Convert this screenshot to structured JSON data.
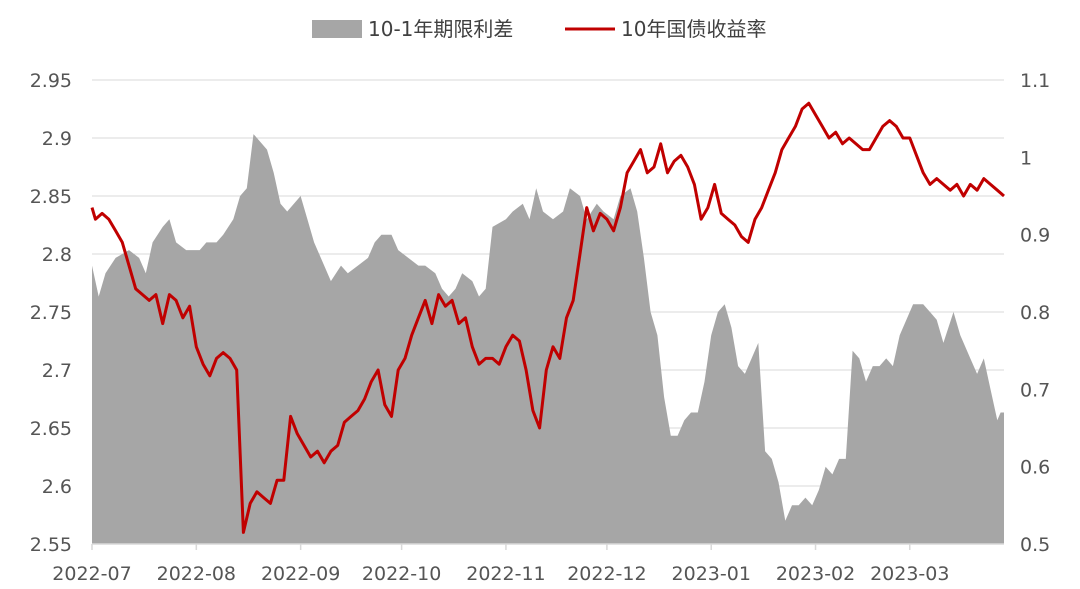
{
  "colors": {
    "spread": "#a6a6a6",
    "yield": "#c00000",
    "axis": "#d9d9d9",
    "text": "#555555"
  },
  "legend": {
    "placement": "top"
  },
  "chart_data": {
    "type": "area+line",
    "xlim": [
      "2022-07-01",
      "2023-03-29"
    ],
    "x_ticks": [
      "2022-07",
      "2022-08",
      "2022-09",
      "2022-10",
      "2022-11",
      "2022-12",
      "2023-01",
      "2023-02",
      "2023-03"
    ],
    "y_left": {
      "lim": [
        2.55,
        2.95
      ],
      "ticks": [
        "2.55",
        "2.6",
        "2.65",
        "2.7",
        "2.75",
        "2.8",
        "2.85",
        "2.9",
        "2.95"
      ]
    },
    "y_right": {
      "lim": [
        0.5,
        1.1
      ],
      "ticks": [
        "0.5",
        "0.6",
        "0.7",
        "0.8",
        "0.9",
        "1",
        "1.1"
      ]
    },
    "series": [
      {
        "name": "10-1年期限利差",
        "kind": "area",
        "axis": "right",
        "points": [
          [
            "2022-07-01",
            0.86
          ],
          [
            "2022-07-03",
            0.82
          ],
          [
            "2022-07-05",
            0.85
          ],
          [
            "2022-07-08",
            0.87
          ],
          [
            "2022-07-12",
            0.88
          ],
          [
            "2022-07-15",
            0.87
          ],
          [
            "2022-07-17",
            0.85
          ],
          [
            "2022-07-19",
            0.89
          ],
          [
            "2022-07-22",
            0.91
          ],
          [
            "2022-07-24",
            0.92
          ],
          [
            "2022-07-26",
            0.89
          ],
          [
            "2022-07-29",
            0.88
          ],
          [
            "2022-08-02",
            0.88
          ],
          [
            "2022-08-04",
            0.89
          ],
          [
            "2022-08-07",
            0.89
          ],
          [
            "2022-08-09",
            0.9
          ],
          [
            "2022-08-12",
            0.92
          ],
          [
            "2022-08-14",
            0.95
          ],
          [
            "2022-08-16",
            0.96
          ],
          [
            "2022-08-18",
            1.03
          ],
          [
            "2022-08-20",
            1.02
          ],
          [
            "2022-08-22",
            1.01
          ],
          [
            "2022-08-24",
            0.98
          ],
          [
            "2022-08-26",
            0.94
          ],
          [
            "2022-08-28",
            0.93
          ],
          [
            "2022-08-30",
            0.94
          ],
          [
            "2022-09-01",
            0.95
          ],
          [
            "2022-09-03",
            0.92
          ],
          [
            "2022-09-05",
            0.89
          ],
          [
            "2022-09-08",
            0.86
          ],
          [
            "2022-09-10",
            0.84
          ],
          [
            "2022-09-13",
            0.86
          ],
          [
            "2022-09-15",
            0.85
          ],
          [
            "2022-09-18",
            0.86
          ],
          [
            "2022-09-21",
            0.87
          ],
          [
            "2022-09-23",
            0.89
          ],
          [
            "2022-09-25",
            0.9
          ],
          [
            "2022-09-28",
            0.9
          ],
          [
            "2022-09-30",
            0.88
          ],
          [
            "2022-10-03",
            0.87
          ],
          [
            "2022-10-06",
            0.86
          ],
          [
            "2022-10-08",
            0.86
          ],
          [
            "2022-10-11",
            0.85
          ],
          [
            "2022-10-13",
            0.83
          ],
          [
            "2022-10-15",
            0.82
          ],
          [
            "2022-10-17",
            0.83
          ],
          [
            "2022-10-19",
            0.85
          ],
          [
            "2022-10-22",
            0.84
          ],
          [
            "2022-10-24",
            0.82
          ],
          [
            "2022-10-26",
            0.83
          ],
          [
            "2022-10-28",
            0.91
          ],
          [
            "2022-11-01",
            0.92
          ],
          [
            "2022-11-03",
            0.93
          ],
          [
            "2022-11-06",
            0.94
          ],
          [
            "2022-11-08",
            0.92
          ],
          [
            "2022-11-10",
            0.96
          ],
          [
            "2022-11-12",
            0.93
          ],
          [
            "2022-11-15",
            0.92
          ],
          [
            "2022-11-18",
            0.93
          ],
          [
            "2022-11-20",
            0.96
          ],
          [
            "2022-11-23",
            0.95
          ],
          [
            "2022-11-25",
            0.92
          ],
          [
            "2022-11-28",
            0.94
          ],
          [
            "2022-11-30",
            0.93
          ],
          [
            "2022-12-03",
            0.92
          ],
          [
            "2022-12-05",
            0.95
          ],
          [
            "2022-12-08",
            0.96
          ],
          [
            "2022-12-10",
            0.93
          ],
          [
            "2022-12-12",
            0.87
          ],
          [
            "2022-12-14",
            0.8
          ],
          [
            "2022-12-16",
            0.77
          ],
          [
            "2022-12-18",
            0.69
          ],
          [
            "2022-12-20",
            0.64
          ],
          [
            "2022-12-22",
            0.64
          ],
          [
            "2022-12-24",
            0.66
          ],
          [
            "2022-12-26",
            0.67
          ],
          [
            "2022-12-28",
            0.67
          ],
          [
            "2022-12-30",
            0.71
          ],
          [
            "2023-01-01",
            0.77
          ],
          [
            "2023-01-03",
            0.8
          ],
          [
            "2023-01-05",
            0.81
          ],
          [
            "2023-01-07",
            0.78
          ],
          [
            "2023-01-09",
            0.73
          ],
          [
            "2023-01-11",
            0.72
          ],
          [
            "2023-01-13",
            0.74
          ],
          [
            "2023-01-15",
            0.76
          ],
          [
            "2023-01-17",
            0.62
          ],
          [
            "2023-01-19",
            0.61
          ],
          [
            "2023-01-21",
            0.58
          ],
          [
            "2023-01-23",
            0.53
          ],
          [
            "2023-01-25",
            0.55
          ],
          [
            "2023-01-27",
            0.55
          ],
          [
            "2023-01-29",
            0.56
          ],
          [
            "2023-01-31",
            0.55
          ],
          [
            "2023-02-02",
            0.57
          ],
          [
            "2023-02-04",
            0.6
          ],
          [
            "2023-02-06",
            0.59
          ],
          [
            "2023-02-08",
            0.61
          ],
          [
            "2023-02-10",
            0.61
          ],
          [
            "2023-02-12",
            0.75
          ],
          [
            "2023-02-14",
            0.74
          ],
          [
            "2023-02-16",
            0.71
          ],
          [
            "2023-02-18",
            0.73
          ],
          [
            "2023-02-20",
            0.73
          ],
          [
            "2023-02-22",
            0.74
          ],
          [
            "2023-02-24",
            0.73
          ],
          [
            "2023-02-26",
            0.77
          ],
          [
            "2023-02-28",
            0.79
          ],
          [
            "2023-03-02",
            0.81
          ],
          [
            "2023-03-05",
            0.81
          ],
          [
            "2023-03-07",
            0.8
          ],
          [
            "2023-03-09",
            0.79
          ],
          [
            "2023-03-11",
            0.76
          ],
          [
            "2023-03-14",
            0.8
          ],
          [
            "2023-03-16",
            0.77
          ],
          [
            "2023-03-19",
            0.74
          ],
          [
            "2023-03-21",
            0.72
          ],
          [
            "2023-03-23",
            0.74
          ],
          [
            "2023-03-25",
            0.7
          ],
          [
            "2023-03-27",
            0.66
          ],
          [
            "2023-03-28",
            0.67
          ],
          [
            "2023-03-29",
            0.67
          ]
        ]
      },
      {
        "name": "10年国债收益率",
        "kind": "line",
        "axis": "left",
        "points": [
          [
            "2022-07-01",
            2.84
          ],
          [
            "2022-07-02",
            2.83
          ],
          [
            "2022-07-04",
            2.835
          ],
          [
            "2022-07-06",
            2.83
          ],
          [
            "2022-07-08",
            2.82
          ],
          [
            "2022-07-10",
            2.81
          ],
          [
            "2022-07-12",
            2.79
          ],
          [
            "2022-07-14",
            2.77
          ],
          [
            "2022-07-16",
            2.765
          ],
          [
            "2022-07-18",
            2.76
          ],
          [
            "2022-07-20",
            2.765
          ],
          [
            "2022-07-22",
            2.74
          ],
          [
            "2022-07-24",
            2.765
          ],
          [
            "2022-07-26",
            2.76
          ],
          [
            "2022-07-28",
            2.745
          ],
          [
            "2022-07-30",
            2.755
          ],
          [
            "2022-08-01",
            2.72
          ],
          [
            "2022-08-03",
            2.705
          ],
          [
            "2022-08-05",
            2.695
          ],
          [
            "2022-08-07",
            2.71
          ],
          [
            "2022-08-09",
            2.715
          ],
          [
            "2022-08-11",
            2.71
          ],
          [
            "2022-08-13",
            2.7
          ],
          [
            "2022-08-15",
            2.56
          ],
          [
            "2022-08-17",
            2.585
          ],
          [
            "2022-08-19",
            2.595
          ],
          [
            "2022-08-21",
            2.59
          ],
          [
            "2022-08-23",
            2.585
          ],
          [
            "2022-08-25",
            2.605
          ],
          [
            "2022-08-27",
            2.605
          ],
          [
            "2022-08-29",
            2.66
          ],
          [
            "2022-08-31",
            2.645
          ],
          [
            "2022-09-02",
            2.635
          ],
          [
            "2022-09-04",
            2.625
          ],
          [
            "2022-09-06",
            2.63
          ],
          [
            "2022-09-08",
            2.62
          ],
          [
            "2022-09-10",
            2.63
          ],
          [
            "2022-09-12",
            2.635
          ],
          [
            "2022-09-14",
            2.655
          ],
          [
            "2022-09-16",
            2.66
          ],
          [
            "2022-09-18",
            2.665
          ],
          [
            "2022-09-20",
            2.675
          ],
          [
            "2022-09-22",
            2.69
          ],
          [
            "2022-09-24",
            2.7
          ],
          [
            "2022-09-26",
            2.67
          ],
          [
            "2022-09-28",
            2.66
          ],
          [
            "2022-09-30",
            2.7
          ],
          [
            "2022-10-02",
            2.71
          ],
          [
            "2022-10-04",
            2.73
          ],
          [
            "2022-10-06",
            2.745
          ],
          [
            "2022-10-08",
            2.76
          ],
          [
            "2022-10-10",
            2.74
          ],
          [
            "2022-10-12",
            2.765
          ],
          [
            "2022-10-14",
            2.755
          ],
          [
            "2022-10-16",
            2.76
          ],
          [
            "2022-10-18",
            2.74
          ],
          [
            "2022-10-20",
            2.745
          ],
          [
            "2022-10-22",
            2.72
          ],
          [
            "2022-10-24",
            2.705
          ],
          [
            "2022-10-26",
            2.71
          ],
          [
            "2022-10-28",
            2.71
          ],
          [
            "2022-10-30",
            2.705
          ],
          [
            "2022-11-01",
            2.72
          ],
          [
            "2022-11-03",
            2.73
          ],
          [
            "2022-11-05",
            2.725
          ],
          [
            "2022-11-07",
            2.7
          ],
          [
            "2022-11-09",
            2.665
          ],
          [
            "2022-11-11",
            2.65
          ],
          [
            "2022-11-13",
            2.7
          ],
          [
            "2022-11-15",
            2.72
          ],
          [
            "2022-11-17",
            2.71
          ],
          [
            "2022-11-19",
            2.745
          ],
          [
            "2022-11-21",
            2.76
          ],
          [
            "2022-11-23",
            2.8
          ],
          [
            "2022-11-25",
            2.84
          ],
          [
            "2022-11-27",
            2.82
          ],
          [
            "2022-11-29",
            2.835
          ],
          [
            "2022-12-01",
            2.83
          ],
          [
            "2022-12-03",
            2.82
          ],
          [
            "2022-12-05",
            2.84
          ],
          [
            "2022-12-07",
            2.87
          ],
          [
            "2022-12-09",
            2.88
          ],
          [
            "2022-12-11",
            2.89
          ],
          [
            "2022-12-13",
            2.87
          ],
          [
            "2022-12-15",
            2.875
          ],
          [
            "2022-12-17",
            2.895
          ],
          [
            "2022-12-19",
            2.87
          ],
          [
            "2022-12-21",
            2.88
          ],
          [
            "2022-12-23",
            2.885
          ],
          [
            "2022-12-25",
            2.875
          ],
          [
            "2022-12-27",
            2.86
          ],
          [
            "2022-12-29",
            2.83
          ],
          [
            "2022-12-31",
            2.84
          ],
          [
            "2023-01-02",
            2.86
          ],
          [
            "2023-01-04",
            2.835
          ],
          [
            "2023-01-06",
            2.83
          ],
          [
            "2023-01-08",
            2.825
          ],
          [
            "2023-01-10",
            2.815
          ],
          [
            "2023-01-12",
            2.81
          ],
          [
            "2023-01-14",
            2.83
          ],
          [
            "2023-01-16",
            2.84
          ],
          [
            "2023-01-18",
            2.855
          ],
          [
            "2023-01-20",
            2.87
          ],
          [
            "2023-01-22",
            2.89
          ],
          [
            "2023-01-24",
            2.9
          ],
          [
            "2023-01-26",
            2.91
          ],
          [
            "2023-01-28",
            2.925
          ],
          [
            "2023-01-30",
            2.93
          ],
          [
            "2023-02-01",
            2.92
          ],
          [
            "2023-02-03",
            2.91
          ],
          [
            "2023-02-05",
            2.9
          ],
          [
            "2023-02-07",
            2.905
          ],
          [
            "2023-02-09",
            2.895
          ],
          [
            "2023-02-11",
            2.9
          ],
          [
            "2023-02-13",
            2.895
          ],
          [
            "2023-02-15",
            2.89
          ],
          [
            "2023-02-17",
            2.89
          ],
          [
            "2023-02-19",
            2.9
          ],
          [
            "2023-02-21",
            2.91
          ],
          [
            "2023-02-23",
            2.915
          ],
          [
            "2023-02-25",
            2.91
          ],
          [
            "2023-02-27",
            2.9
          ],
          [
            "2023-03-01",
            2.9
          ],
          [
            "2023-03-03",
            2.885
          ],
          [
            "2023-03-05",
            2.87
          ],
          [
            "2023-03-07",
            2.86
          ],
          [
            "2023-03-09",
            2.865
          ],
          [
            "2023-03-11",
            2.86
          ],
          [
            "2023-03-13",
            2.855
          ],
          [
            "2023-03-15",
            2.86
          ],
          [
            "2023-03-17",
            2.85
          ],
          [
            "2023-03-19",
            2.86
          ],
          [
            "2023-03-21",
            2.855
          ],
          [
            "2023-03-23",
            2.865
          ],
          [
            "2023-03-25",
            2.86
          ],
          [
            "2023-03-27",
            2.855
          ],
          [
            "2023-03-29",
            2.85
          ]
        ]
      }
    ]
  }
}
